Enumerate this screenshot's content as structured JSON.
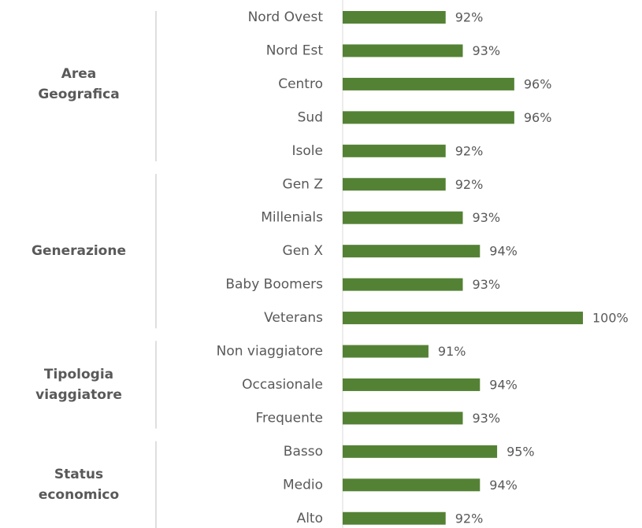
{
  "chart_data": {
    "type": "bar",
    "color": "#548235",
    "xlim": [
      86,
      100
    ],
    "groups": [
      {
        "name": "Area Geografica",
        "categories": [
          "Nord Ovest",
          "Nord Est",
          "Centro",
          "Sud",
          "Isole"
        ],
        "values": [
          92,
          93,
          96,
          96,
          92
        ],
        "value_labels": [
          "92%",
          "93%",
          "96%",
          "96%",
          "92%"
        ]
      },
      {
        "name": "Generazione",
        "categories": [
          "Gen Z",
          "Millenials",
          "Gen X",
          "Baby Boomers",
          "Veterans"
        ],
        "values": [
          92,
          93,
          94,
          93,
          100
        ],
        "value_labels": [
          "92%",
          "93%",
          "94%",
          "93%",
          "100%"
        ]
      },
      {
        "name": "Tipologia viaggiatore",
        "categories": [
          "Non viaggiatore",
          "Occasionale",
          "Frequente"
        ],
        "values": [
          91,
          94,
          93
        ],
        "value_labels": [
          "91%",
          "94%",
          "93%"
        ]
      },
      {
        "name": "Status economico",
        "categories": [
          "Basso",
          "Medio",
          "Alto"
        ],
        "values": [
          95,
          94,
          92
        ],
        "value_labels": [
          "95%",
          "94%",
          "92%"
        ]
      }
    ]
  }
}
